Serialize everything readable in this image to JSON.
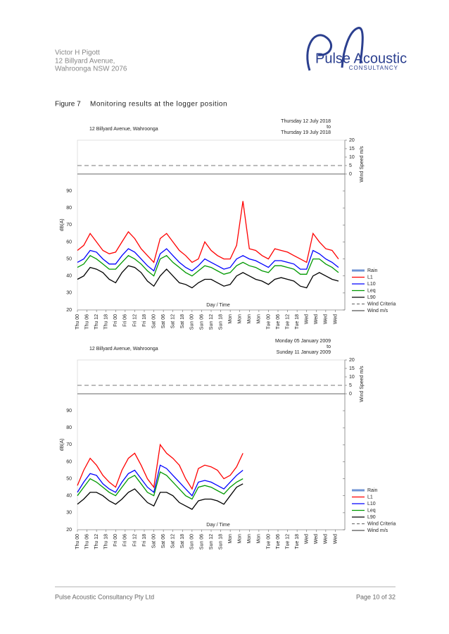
{
  "header": {
    "address": [
      "Victor H Pigott",
      "12 Billyard Avenue,",
      "Wahroonga  NSW  2076"
    ],
    "logo": {
      "name": "Pulse Acoustic",
      "tagline": "CONSULTANCY"
    }
  },
  "figure": {
    "number": "Figure 7",
    "caption": "Monitoring results at the logger position"
  },
  "footer": {
    "company": "Pulse Acoustic Consultancy Pty Ltd",
    "page": "Page 10 of 32"
  },
  "chart_data": [
    {
      "type": "line",
      "title": "12 Billyard Avenue, Wahroonga",
      "date_from": "Thursday 12 July 2018",
      "date_sep": "to",
      "date_to": "Thursday 19 July 2018",
      "ylabel": "dB(A)",
      "xlabel": "Day / Time",
      "y2label": "Wind Speed m/s",
      "ylim": [
        20,
        98
      ],
      "yticks": [
        20,
        30,
        40,
        50,
        60,
        70,
        80,
        90
      ],
      "y2lim": [
        0,
        20
      ],
      "y2ticks": [
        0,
        5,
        10,
        15,
        20
      ],
      "wind_criteria": 5,
      "xlim": [
        0,
        168
      ],
      "xticks": [
        {
          "value": 0,
          "label": "Thu 00"
        },
        {
          "value": 6,
          "label": "Thu 06"
        },
        {
          "value": 12,
          "label": "Thu 12"
        },
        {
          "value": 18,
          "label": "Thu 18"
        },
        {
          "value": 24,
          "label": "Fri 00"
        },
        {
          "value": 30,
          "label": "Fri 06"
        },
        {
          "value": 36,
          "label": "Fri 12"
        },
        {
          "value": 42,
          "label": "Fri 18"
        },
        {
          "value": 48,
          "label": "Sat 00"
        },
        {
          "value": 54,
          "label": "Sat 06"
        },
        {
          "value": 60,
          "label": "Sat 12"
        },
        {
          "value": 66,
          "label": "Sat 18"
        },
        {
          "value": 72,
          "label": "Sun 00"
        },
        {
          "value": 78,
          "label": "Sun 06"
        },
        {
          "value": 84,
          "label": "Sun 12"
        },
        {
          "value": 90,
          "label": "Sun 18"
        },
        {
          "value": 96,
          "label": "Mon"
        },
        {
          "value": 102,
          "label": "Mon"
        },
        {
          "value": 108,
          "label": "Mon"
        },
        {
          "value": 114,
          "label": "Mon"
        },
        {
          "value": 120,
          "label": "Tue 00"
        },
        {
          "value": 126,
          "label": "Tue 06"
        },
        {
          "value": 132,
          "label": "Tue 12"
        },
        {
          "value": 138,
          "label": "Tue 18"
        },
        {
          "value": 144,
          "label": "Wed"
        },
        {
          "value": 150,
          "label": "Wed"
        },
        {
          "value": 156,
          "label": "Wed"
        },
        {
          "value": 162,
          "label": "Wed"
        }
      ],
      "x": [
        0,
        4,
        8,
        12,
        16,
        20,
        24,
        28,
        32,
        36,
        40,
        44,
        48,
        52,
        56,
        60,
        64,
        68,
        72,
        76,
        80,
        84,
        88,
        92,
        96,
        100,
        104,
        108,
        112,
        116,
        120,
        124,
        128,
        132,
        136,
        140,
        144,
        148,
        152,
        156,
        160,
        164
      ],
      "series": [
        {
          "name": "L1",
          "color": "#ff0000",
          "values": [
            55,
            58,
            65,
            60,
            55,
            53,
            54,
            60,
            66,
            62,
            56,
            52,
            48,
            62,
            65,
            60,
            55,
            52,
            48,
            50,
            60,
            55,
            52,
            50,
            50,
            58,
            84,
            56,
            55,
            52,
            50,
            56,
            55,
            54,
            52,
            50,
            48,
            65,
            60,
            56,
            55,
            50
          ]
        },
        {
          "name": "L10",
          "color": "#0000ff",
          "values": [
            48,
            50,
            55,
            54,
            50,
            47,
            47,
            52,
            56,
            54,
            50,
            46,
            43,
            53,
            56,
            52,
            48,
            45,
            43,
            46,
            50,
            48,
            46,
            44,
            45,
            50,
            52,
            50,
            49,
            47,
            45,
            49,
            49,
            48,
            47,
            44,
            44,
            55,
            53,
            50,
            48,
            45
          ]
        },
        {
          "name": "Leq",
          "color": "#009900",
          "values": [
            45,
            47,
            52,
            50,
            47,
            44,
            44,
            48,
            52,
            50,
            47,
            43,
            40,
            50,
            52,
            48,
            45,
            42,
            40,
            43,
            46,
            45,
            43,
            41,
            42,
            46,
            48,
            46,
            45,
            43,
            42,
            46,
            46,
            45,
            44,
            41,
            41,
            50,
            50,
            47,
            45,
            42
          ]
        },
        {
          "name": "L90",
          "color": "#000000",
          "values": [
            38,
            40,
            45,
            44,
            42,
            38,
            36,
            42,
            46,
            45,
            42,
            37,
            34,
            40,
            44,
            40,
            36,
            35,
            33,
            36,
            38,
            38,
            36,
            34,
            35,
            40,
            42,
            40,
            38,
            37,
            35,
            38,
            39,
            38,
            37,
            34,
            33,
            40,
            42,
            40,
            38,
            37
          ]
        }
      ],
      "legend_extra": [
        {
          "name": "Rain",
          "color": "#6f93d6"
        },
        {
          "name": "Wind Criteria",
          "color": "#777777"
        },
        {
          "name": "Wind m/s",
          "color": "#555555"
        }
      ]
    },
    {
      "type": "line",
      "title": "12 Billyard Avenue, Wahroonga",
      "date_from": "Monday 05 January 2009",
      "date_sep": "to",
      "date_to": "Sunday 11 January 2009",
      "ylabel": "dB(A)",
      "xlabel": "Day / Time",
      "y2label": "Wind Speed m/s",
      "ylim": [
        20,
        98
      ],
      "yticks": [
        20,
        30,
        40,
        50,
        60,
        70,
        80,
        90
      ],
      "y2lim": [
        0,
        20
      ],
      "y2ticks": [
        0,
        5,
        10,
        15,
        20
      ],
      "wind_criteria": 5,
      "xlim": [
        0,
        168
      ],
      "xticks": [
        {
          "value": 0,
          "label": "Thu 00"
        },
        {
          "value": 6,
          "label": "Thu 06"
        },
        {
          "value": 12,
          "label": "Thu 12"
        },
        {
          "value": 18,
          "label": "Thu 18"
        },
        {
          "value": 24,
          "label": "Fri 00"
        },
        {
          "value": 30,
          "label": "Fri 06"
        },
        {
          "value": 36,
          "label": "Fri 12"
        },
        {
          "value": 42,
          "label": "Fri 18"
        },
        {
          "value": 48,
          "label": "Sat 00"
        },
        {
          "value": 54,
          "label": "Sat 06"
        },
        {
          "value": 60,
          "label": "Sat 12"
        },
        {
          "value": 66,
          "label": "Sat 18"
        },
        {
          "value": 72,
          "label": "Sun 00"
        },
        {
          "value": 78,
          "label": "Sun 06"
        },
        {
          "value": 84,
          "label": "Sun 12"
        },
        {
          "value": 90,
          "label": "Sun 18"
        },
        {
          "value": 96,
          "label": "Mon"
        },
        {
          "value": 102,
          "label": "Mon"
        },
        {
          "value": 108,
          "label": "Mon"
        },
        {
          "value": 114,
          "label": "Mon"
        },
        {
          "value": 120,
          "label": "Tue 00"
        },
        {
          "value": 126,
          "label": "Tue 06"
        },
        {
          "value": 132,
          "label": "Tue 12"
        },
        {
          "value": 138,
          "label": "Tue 18"
        },
        {
          "value": 144,
          "label": "Wed"
        },
        {
          "value": 150,
          "label": "Wed"
        },
        {
          "value": 156,
          "label": "Wed"
        },
        {
          "value": 162,
          "label": "Wed"
        }
      ],
      "x": [
        0,
        4,
        8,
        12,
        16,
        20,
        24,
        28,
        32,
        36,
        40,
        44,
        48,
        52,
        56,
        60,
        64,
        68,
        72,
        76,
        80,
        84,
        88,
        92,
        96,
        100,
        104
      ],
      "series": [
        {
          "name": "L1",
          "color": "#ff0000",
          "values": [
            46,
            55,
            62,
            58,
            52,
            48,
            45,
            55,
            62,
            65,
            58,
            50,
            45,
            70,
            65,
            62,
            58,
            50,
            44,
            56,
            58,
            57,
            55,
            50,
            52,
            57,
            65
          ]
        },
        {
          "name": "L10",
          "color": "#0000ff",
          "values": [
            42,
            48,
            53,
            52,
            47,
            44,
            42,
            48,
            53,
            55,
            50,
            45,
            42,
            58,
            56,
            52,
            48,
            44,
            40,
            48,
            49,
            48,
            46,
            44,
            48,
            52,
            55
          ]
        },
        {
          "name": "Leq",
          "color": "#009900",
          "values": [
            40,
            45,
            50,
            48,
            45,
            42,
            40,
            45,
            50,
            52,
            47,
            42,
            40,
            54,
            52,
            48,
            44,
            40,
            38,
            45,
            46,
            45,
            43,
            41,
            45,
            48,
            50
          ]
        },
        {
          "name": "L90",
          "color": "#000000",
          "values": [
            35,
            38,
            42,
            42,
            40,
            37,
            35,
            38,
            42,
            44,
            40,
            36,
            34,
            42,
            42,
            40,
            36,
            34,
            32,
            37,
            38,
            38,
            37,
            35,
            40,
            45,
            47
          ]
        }
      ],
      "legend_extra": [
        {
          "name": "Rain",
          "color": "#6f93d6"
        },
        {
          "name": "Wind Criteria",
          "color": "#777777"
        },
        {
          "name": "Wind m/s",
          "color": "#555555"
        }
      ]
    }
  ]
}
